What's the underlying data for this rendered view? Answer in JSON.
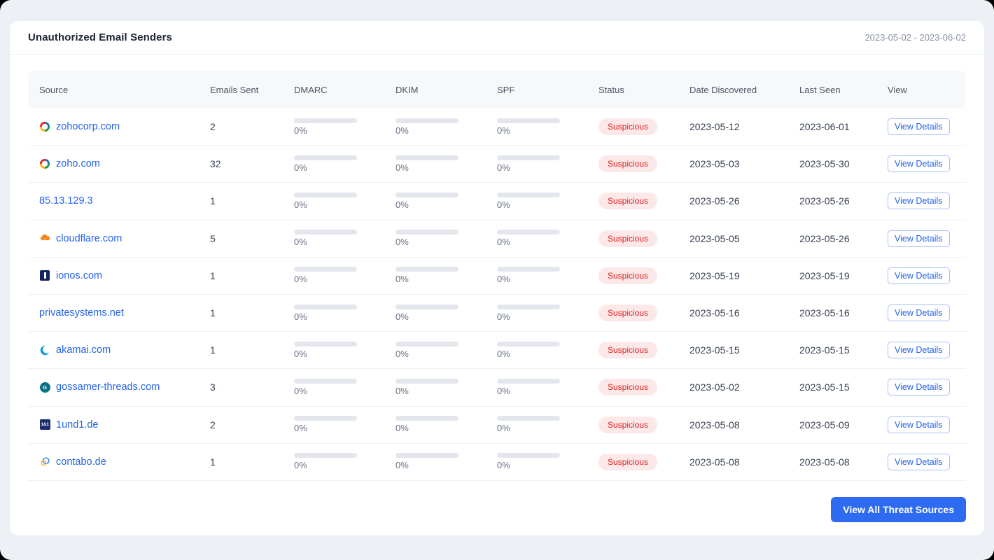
{
  "panel": {
    "title": "Unauthorized Email Senders",
    "date_range": "2023-05-02 - 2023-06-02",
    "view_all_button": "View All Threat Sources"
  },
  "table": {
    "columns": [
      "Source",
      "Emails Sent",
      "DMARC",
      "DKIM",
      "SPF",
      "Status",
      "Date Discovered",
      "Last Seen",
      "View"
    ],
    "rows": [
      {
        "source": "zohocorp.com",
        "favicon": "zoho",
        "emails_sent": "2",
        "dmarc": {
          "percent": 0,
          "label": "0%"
        },
        "dkim": {
          "percent": 0,
          "label": "0%"
        },
        "spf": {
          "percent": 0,
          "label": "0%"
        },
        "status": "Suspicious",
        "date_discovered": "2023-05-12",
        "last_seen": "2023-06-01",
        "view_button": "View Details"
      },
      {
        "source": "zoho.com",
        "favicon": "zoho",
        "emails_sent": "32",
        "dmarc": {
          "percent": 0,
          "label": "0%"
        },
        "dkim": {
          "percent": 0,
          "label": "0%"
        },
        "spf": {
          "percent": 0,
          "label": "0%"
        },
        "status": "Suspicious",
        "date_discovered": "2023-05-03",
        "last_seen": "2023-05-30",
        "view_button": "View Details"
      },
      {
        "source": "85.13.129.3",
        "favicon": null,
        "emails_sent": "1",
        "dmarc": {
          "percent": 0,
          "label": "0%"
        },
        "dkim": {
          "percent": 0,
          "label": "0%"
        },
        "spf": {
          "percent": 0,
          "label": "0%"
        },
        "status": "Suspicious",
        "date_discovered": "2023-05-26",
        "last_seen": "2023-05-26",
        "view_button": "View Details"
      },
      {
        "source": "cloudflare.com",
        "favicon": "cloudflare",
        "emails_sent": "5",
        "dmarc": {
          "percent": 0,
          "label": "0%"
        },
        "dkim": {
          "percent": 0,
          "label": "0%"
        },
        "spf": {
          "percent": 0,
          "label": "0%"
        },
        "status": "Suspicious",
        "date_discovered": "2023-05-05",
        "last_seen": "2023-05-26",
        "view_button": "View Details"
      },
      {
        "source": "ionos.com",
        "favicon": "ionos",
        "emails_sent": "1",
        "dmarc": {
          "percent": 0,
          "label": "0%"
        },
        "dkim": {
          "percent": 0,
          "label": "0%"
        },
        "spf": {
          "percent": 0,
          "label": "0%"
        },
        "status": "Suspicious",
        "date_discovered": "2023-05-19",
        "last_seen": "2023-05-19",
        "view_button": "View Details"
      },
      {
        "source": "privatesystems.net",
        "favicon": null,
        "emails_sent": "1",
        "dmarc": {
          "percent": 0,
          "label": "0%"
        },
        "dkim": {
          "percent": 0,
          "label": "0%"
        },
        "spf": {
          "percent": 0,
          "label": "0%"
        },
        "status": "Suspicious",
        "date_discovered": "2023-05-16",
        "last_seen": "2023-05-16",
        "view_button": "View Details"
      },
      {
        "source": "akamai.com",
        "favicon": "akamai",
        "emails_sent": "1",
        "dmarc": {
          "percent": 0,
          "label": "0%"
        },
        "dkim": {
          "percent": 0,
          "label": "0%"
        },
        "spf": {
          "percent": 0,
          "label": "0%"
        },
        "status": "Suspicious",
        "date_discovered": "2023-05-15",
        "last_seen": "2023-05-15",
        "view_button": "View Details"
      },
      {
        "source": "gossamer-threads.com",
        "favicon": "gossamer",
        "emails_sent": "3",
        "dmarc": {
          "percent": 0,
          "label": "0%"
        },
        "dkim": {
          "percent": 0,
          "label": "0%"
        },
        "spf": {
          "percent": 0,
          "label": "0%"
        },
        "status": "Suspicious",
        "date_discovered": "2023-05-02",
        "last_seen": "2023-05-15",
        "view_button": "View Details"
      },
      {
        "source": "1und1.de",
        "favicon": "1und1",
        "emails_sent": "2",
        "dmarc": {
          "percent": 0,
          "label": "0%"
        },
        "dkim": {
          "percent": 0,
          "label": "0%"
        },
        "spf": {
          "percent": 0,
          "label": "0%"
        },
        "status": "Suspicious",
        "date_discovered": "2023-05-08",
        "last_seen": "2023-05-09",
        "view_button": "View Details"
      },
      {
        "source": "contabo.de",
        "favicon": "contabo",
        "emails_sent": "1",
        "dmarc": {
          "percent": 0,
          "label": "0%"
        },
        "dkim": {
          "percent": 0,
          "label": "0%"
        },
        "spf": {
          "percent": 0,
          "label": "0%"
        },
        "status": "Suspicious",
        "date_discovered": "2023-05-08",
        "last_seen": "2023-05-08",
        "view_button": "View Details"
      }
    ]
  },
  "colors": {
    "link_blue": "#2563eb",
    "primary_button": "#2e6bf0",
    "badge_bg": "#fce8e8",
    "badge_text": "#e02424",
    "header_row_bg": "#f7f8fa",
    "page_bg": "#edf0f4"
  }
}
